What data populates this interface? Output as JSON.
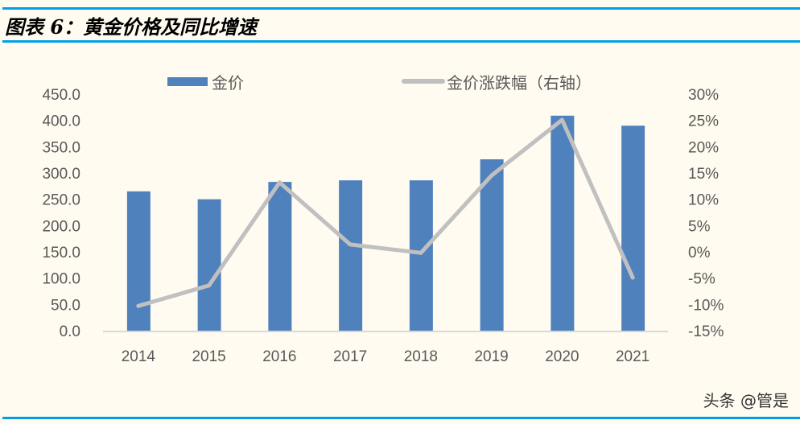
{
  "header": {
    "title": "图表 6：黄金价格及同比增速"
  },
  "watermark": "头条 @管是",
  "colors": {
    "bar": "#4f81bd",
    "line": "#c0c0c0",
    "rule": "#00a0e9",
    "background": "#fffbf0"
  },
  "chart_data": {
    "type": "bar+line",
    "categories": [
      "2014",
      "2015",
      "2016",
      "2017",
      "2018",
      "2019",
      "2020",
      "2021"
    ],
    "series": [
      {
        "name": "金价",
        "type": "bar",
        "axis": "left",
        "values": [
          265,
          250,
          283,
          286,
          286,
          326,
          409,
          390
        ]
      },
      {
        "name": "金价涨跌幅（右轴）",
        "type": "line",
        "axis": "right",
        "values": [
          -10.3,
          -6.4,
          13.2,
          1.4,
          -0.2,
          14.5,
          25.1,
          -4.9
        ]
      }
    ],
    "left_axis": {
      "range": [
        0,
        450
      ],
      "ticks": [
        "0.0",
        "50.0",
        "100.0",
        "150.0",
        "200.0",
        "250.0",
        "300.0",
        "350.0",
        "400.0",
        "450.0"
      ]
    },
    "right_axis": {
      "range": [
        -15,
        30
      ],
      "unit": "%",
      "ticks": [
        "-15%",
        "-10%",
        "-5%",
        "0%",
        "5%",
        "10%",
        "15%",
        "20%",
        "25%",
        "30%"
      ]
    },
    "legend": "top",
    "grid": false
  }
}
